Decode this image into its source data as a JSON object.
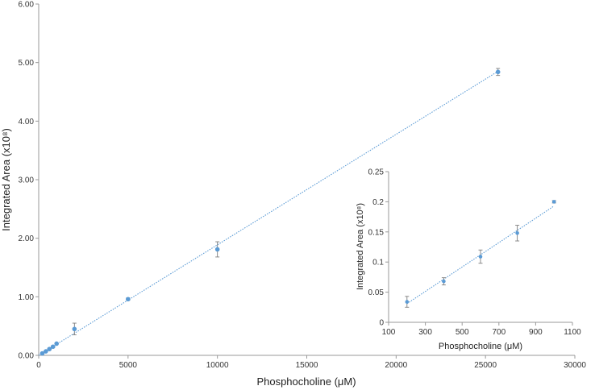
{
  "chart_data": [
    {
      "type": "scatter",
      "xlabel": "Phosphocholine (μM)",
      "ylabel": "Integrated Area (x10⁸)",
      "xlim": [
        0,
        30000
      ],
      "ylim": [
        0,
        6
      ],
      "xticks": [
        "0",
        "5000",
        "10000",
        "15000",
        "20000",
        "25000",
        "30000"
      ],
      "xtick_values": [
        0,
        5000,
        10000,
        15000,
        20000,
        25000,
        30000
      ],
      "yticks": [
        "0.00",
        "1.00",
        "2.00",
        "3.00",
        "4.00",
        "5.00",
        "6.00"
      ],
      "ytick_values": [
        0,
        1,
        2,
        3,
        4,
        5,
        6
      ],
      "grid": false,
      "color": "#5b9bd5",
      "series": [
        {
          "points": [
            {
              "x": 200,
              "y": 0.033,
              "err": 0.01
            },
            {
              "x": 400,
              "y": 0.068,
              "err": 0.006
            },
            {
              "x": 600,
              "y": 0.108,
              "err": 0.012
            },
            {
              "x": 800,
              "y": 0.148,
              "err": 0.013
            },
            {
              "x": 1000,
              "y": 0.2,
              "err": 0.002
            },
            {
              "x": 2000,
              "y": 0.45,
              "err": 0.1
            },
            {
              "x": 5000,
              "y": 0.96,
              "err": 0.02
            },
            {
              "x": 10000,
              "y": 1.81,
              "err": 0.13
            },
            {
              "x": 25700,
              "y": 4.84,
              "err": 0.06
            }
          ]
        }
      ],
      "trendline": {
        "x": [
          0,
          25700
        ],
        "y": [
          0,
          4.85
        ],
        "style": "dotted"
      }
    },
    {
      "type": "scatter",
      "xlabel": "Phosphocholine (μM)",
      "ylabel": "Integrated Area (x10⁸)",
      "xlim": [
        100,
        1100
      ],
      "ylim": [
        0,
        0.25
      ],
      "xticks": [
        "100",
        "300",
        "500",
        "700",
        "900",
        "1100"
      ],
      "xtick_values": [
        100,
        300,
        500,
        700,
        900,
        1100
      ],
      "yticks": [
        "0",
        "0.05",
        "0.1",
        "0.15",
        "0.2",
        "0.25"
      ],
      "ytick_values": [
        0,
        0.05,
        0.1,
        0.15,
        0.2,
        0.25
      ],
      "grid": false,
      "color": "#5b9bd5",
      "series": [
        {
          "points": [
            {
              "x": 200,
              "y": 0.034,
              "err": 0.009
            },
            {
              "x": 400,
              "y": 0.068,
              "err": 0.006
            },
            {
              "x": 600,
              "y": 0.109,
              "err": 0.011
            },
            {
              "x": 800,
              "y": 0.148,
              "err": 0.013
            },
            {
              "x": 1000,
              "y": 0.2,
              "err": 0.002
            }
          ]
        }
      ],
      "trendline": {
        "x": [
          200,
          1000
        ],
        "y": [
          0.031,
          0.193
        ],
        "style": "dotted"
      }
    }
  ]
}
